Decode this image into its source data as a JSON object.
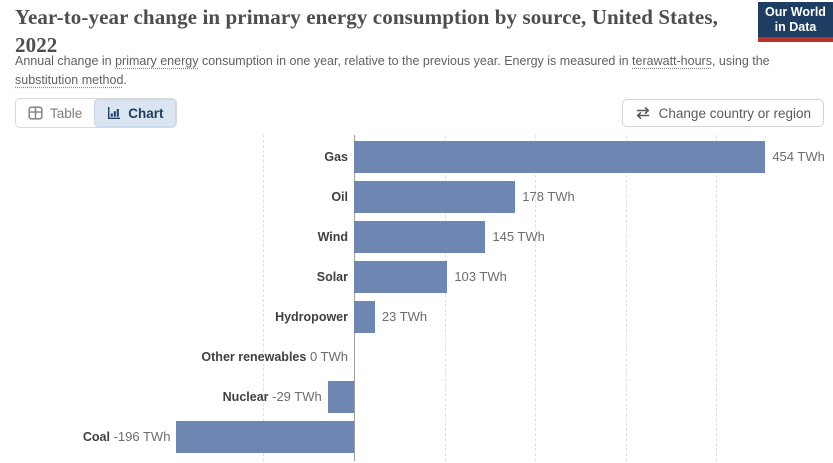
{
  "header": {
    "title": "Year-to-year change in primary energy consumption by source, United States, 2022",
    "subtitle": {
      "part1": "Annual change in ",
      "term1": "primary energy",
      "part2": " consumption in one year, relative to the previous year. Energy is measured in ",
      "term2": "terawatt-hours",
      "part3": ", using the ",
      "term3": "substitution method",
      "part4": "."
    },
    "logo": {
      "line1": "Our World",
      "line2": "in Data"
    }
  },
  "toolbar": {
    "table_label": "Table",
    "chart_label": "Chart",
    "change_country_label": "Change country or region"
  },
  "chart_data": {
    "type": "bar",
    "orientation": "horizontal",
    "title": "Year-to-year change in primary energy consumption by source, United States, 2022",
    "unit": "TWh",
    "categories": [
      "Gas",
      "Oil",
      "Wind",
      "Solar",
      "Hydropower",
      "Other renewables",
      "Nuclear",
      "Coal"
    ],
    "values": [
      454,
      178,
      145,
      103,
      23,
      0,
      -29,
      -196
    ],
    "value_labels": [
      "454 TWh",
      "178 TWh",
      "145 TWh",
      "103 TWh",
      "23 TWh",
      "0 TWh",
      "-29 TWh",
      "-196 TWh"
    ],
    "xlim": [
      -215,
      520
    ],
    "gridlines": [
      -100,
      100,
      200,
      300,
      400
    ],
    "grid": true,
    "legend": "none",
    "bar_color": "#6e87b2"
  },
  "colors": {
    "accent_navy": "#1d3d63",
    "logo_red": "#b5332b",
    "selected_tab_bg": "#dbe5f1",
    "bar": "#6e87b2",
    "gridline": "#e0e0e0",
    "zero_axis": "#9e9e9e"
  }
}
